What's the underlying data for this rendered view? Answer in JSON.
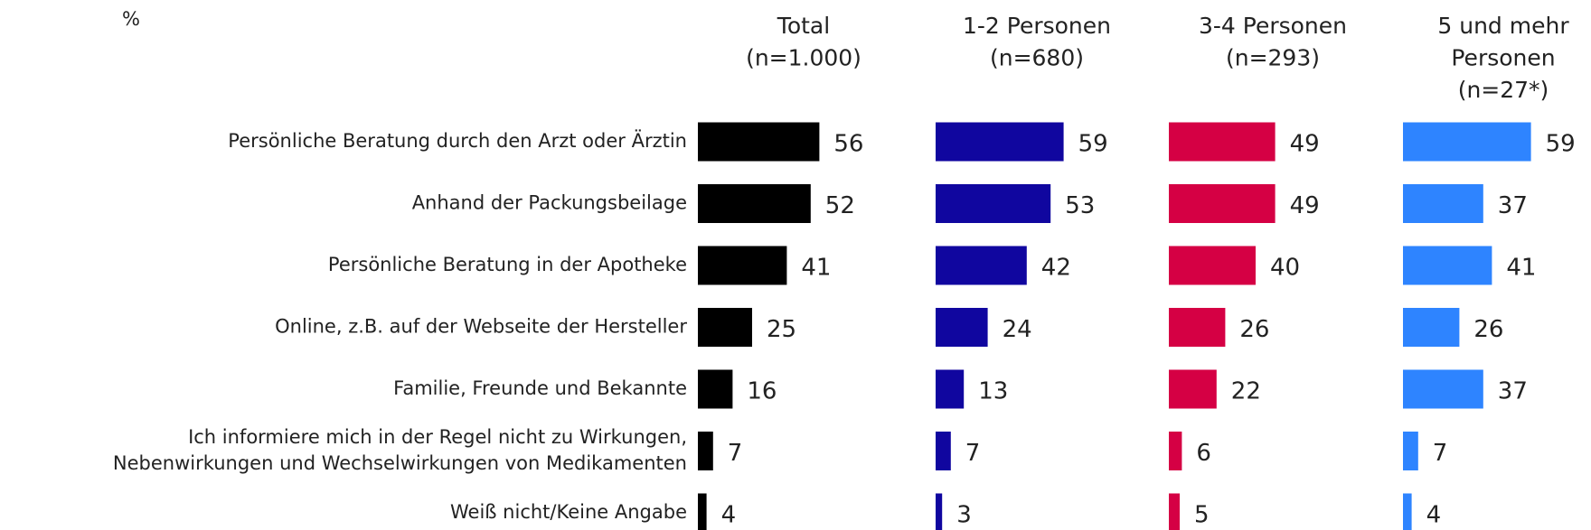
{
  "chart_data": {
    "type": "bar",
    "orientation": "horizontal",
    "unit": "%",
    "categories": [
      "Persönliche Beratung durch den Arzt oder Ärztin",
      "Anhand der Packungsbeilage",
      "Persönliche Beratung in der Apotheke",
      "Online, z.B. auf der Webseite der Hersteller",
      "Familie, Freunde und Bekannte",
      "Ich informiere mich in der Regel nicht zu Wirkungen,\nNebenwirkungen und Wechselwirkungen von Medikamenten",
      "Weiß nicht/Keine Angabe"
    ],
    "xlim": [
      0,
      100
    ],
    "series": [
      {
        "name": "Total\n(n=1.000)",
        "color": "#000000",
        "values": [
          56,
          52,
          41,
          25,
          16,
          7,
          4
        ]
      },
      {
        "name": "1-2 Personen\n(n=680)",
        "color": "#10069f",
        "values": [
          59,
          53,
          42,
          24,
          13,
          7,
          3
        ]
      },
      {
        "name": "3-4 Personen\n(n=293)",
        "color": "#d50044",
        "values": [
          49,
          49,
          40,
          26,
          22,
          6,
          5
        ]
      },
      {
        "name": "5 und mehr\nPersonen\n(n=27*)",
        "color": "#2e84ff",
        "values": [
          59,
          37,
          41,
          26,
          37,
          7,
          4
        ]
      }
    ]
  }
}
